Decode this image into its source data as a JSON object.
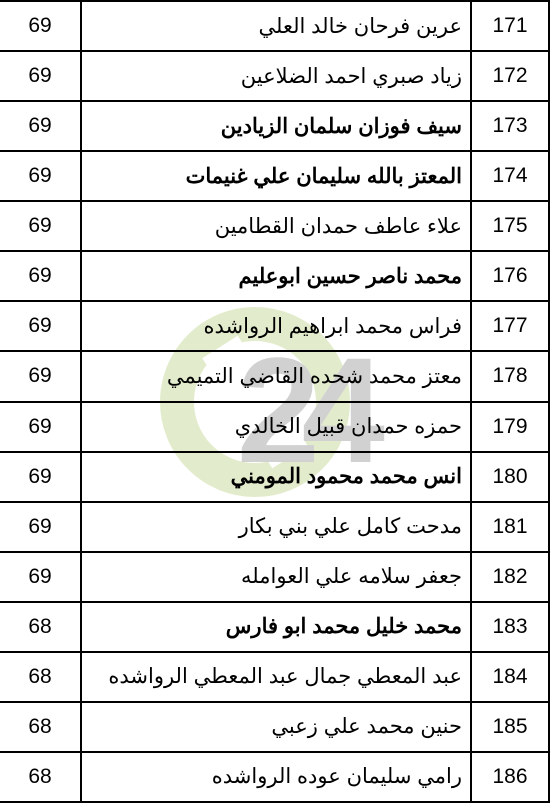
{
  "watermark": {
    "j_color": "#2b5c8a",
    "c_color": "#8fb83a",
    "two_color": "#4c4c4c",
    "four_color": "#4c4c4c"
  },
  "table": {
    "border_color": "#000000",
    "text_color": "#000000",
    "font_size": 21,
    "rows": [
      {
        "num": "171",
        "name": "عرين فرحان خالد العلي",
        "score": "69",
        "bold": false
      },
      {
        "num": "172",
        "name": "زياد صبري احمد الضلاعين",
        "score": "69",
        "bold": false
      },
      {
        "num": "173",
        "name": "سيف فوزان سلمان الزيادين",
        "score": "69",
        "bold": true
      },
      {
        "num": "174",
        "name": "المعتز بالله سليمان علي غنيمات",
        "score": "69",
        "bold": true
      },
      {
        "num": "175",
        "name": "علاء عاطف حمدان القطامين",
        "score": "69",
        "bold": false
      },
      {
        "num": "176",
        "name": "محمد ناصر حسين ابوعليم",
        "score": "69",
        "bold": true
      },
      {
        "num": "177",
        "name": "فراس محمد ابراهيم الرواشده",
        "score": "69",
        "bold": false
      },
      {
        "num": "178",
        "name": "معتز محمد شحده القاضي التميمي",
        "score": "69",
        "bold": false
      },
      {
        "num": "179",
        "name": "حمزه حمدان قبيل الخالدي",
        "score": "69",
        "bold": false
      },
      {
        "num": "180",
        "name": "انس محمد محمود المومني",
        "score": "69",
        "bold": true
      },
      {
        "num": "181",
        "name": "مدحت كامل علي بني بكار",
        "score": "69",
        "bold": false
      },
      {
        "num": "182",
        "name": "جعفر سلامه علي العوامله",
        "score": "69",
        "bold": false
      },
      {
        "num": "183",
        "name": "محمد خليل محمد ابو فارس",
        "score": "68",
        "bold": true
      },
      {
        "num": "184",
        "name": "عبد المعطي جمال عبد المعطي الرواشده",
        "score": "68",
        "bold": false
      },
      {
        "num": "185",
        "name": "حنين محمد علي زعبي",
        "score": "68",
        "bold": false
      },
      {
        "num": "186",
        "name": "رامي سليمان عوده الرواشده",
        "score": "68",
        "bold": false
      }
    ]
  }
}
